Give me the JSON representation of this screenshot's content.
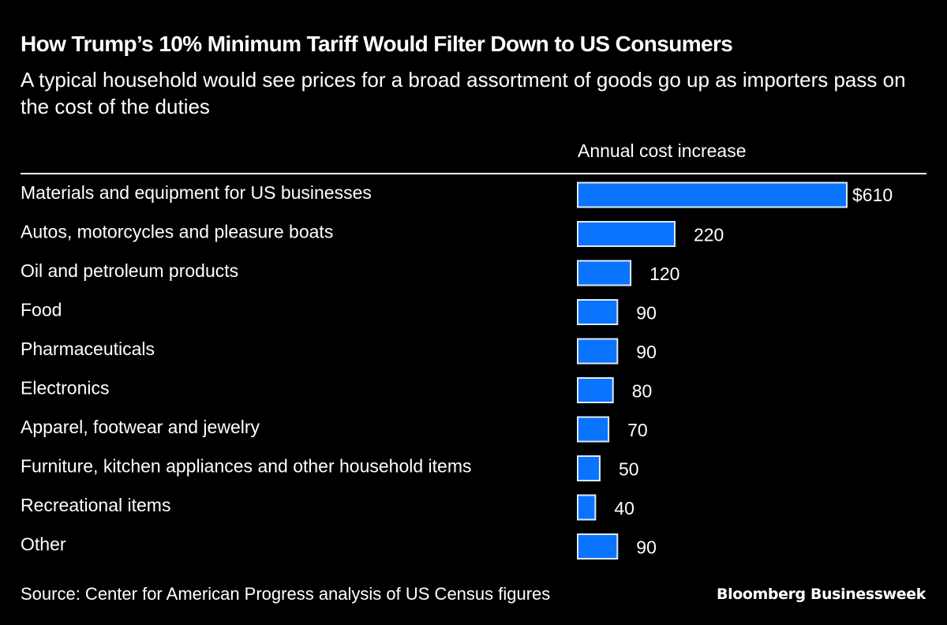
{
  "header": {
    "title": "How Trump’s 10% Minimum Tariff Would Filter Down to US Consumers",
    "subtitle": "A typical household would see prices for a broad assortment of goods go up as importers pass on the cost of the duties"
  },
  "chart_data": {
    "type": "bar",
    "orientation": "horizontal",
    "title": "How Trump’s 10% Minimum Tariff Would Filter Down to US Consumers",
    "subtitle": "A typical household would see prices for a broad assortment of goods go up as importers pass on the cost of the duties",
    "column_header": "Annual cost increase",
    "xlabel": "Annual cost increase",
    "ylabel": "",
    "unit": "$",
    "categories": [
      "Materials and equipment for US businesses",
      "Autos, motorcycles and pleasure boats",
      "Oil and petroleum products",
      "Food",
      "Pharmaceuticals",
      "Electronics",
      "Apparel, footwear and jewelry",
      "Furniture, kitchen appliances and other household items",
      "Recreational items",
      "Other"
    ],
    "values": [
      610,
      220,
      120,
      90,
      90,
      80,
      70,
      50,
      40,
      90
    ],
    "value_labels": [
      "$610",
      "220",
      "120",
      "90",
      "90",
      "80",
      "70",
      "50",
      "40",
      "90"
    ],
    "xlim": [
      0,
      610
    ],
    "grid": false,
    "legend": "none",
    "bar_color": "#0a74ff"
  },
  "footer": {
    "source": "Source: Center for American Progress analysis of US Census figures",
    "brand": "Bloomberg Businessweek"
  }
}
